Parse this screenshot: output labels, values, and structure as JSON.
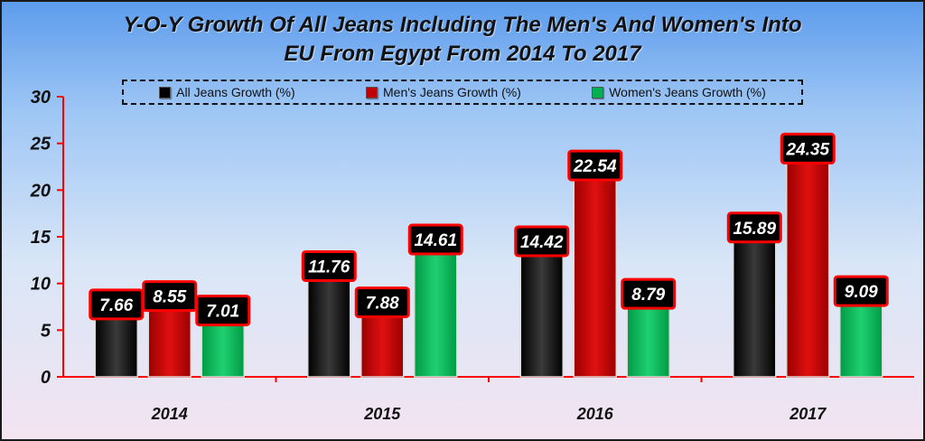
{
  "chart_data": {
    "type": "bar",
    "title_lines": [
      "Y-O-Y Growth Of All Jeans Including The Men's And Women's Into",
      "EU From Egypt From 2014 To 2017"
    ],
    "categories": [
      "2014",
      "2015",
      "2016",
      "2017"
    ],
    "series": [
      {
        "name": "All Jeans Growth (%)",
        "values": [
          7.66,
          11.76,
          14.42,
          15.89
        ],
        "color": "#000000",
        "labels": [
          "7.66",
          "11.76",
          "14.42",
          "15.89"
        ]
      },
      {
        "name": "Men's Jeans Growth (%)",
        "values": [
          8.55,
          7.88,
          22.54,
          24.35
        ],
        "color": "#c00000",
        "labels": [
          "8.55",
          "7.88",
          "22.54",
          "24.35"
        ]
      },
      {
        "name": "Women's Jeans  Growth (%)",
        "values": [
          7.01,
          14.61,
          8.79,
          9.09
        ],
        "color": "#00b050",
        "labels": [
          "7.01",
          "14.61",
          "8.79",
          "9.09"
        ]
      }
    ],
    "ylim": [
      0,
      30
    ],
    "yticks": [
      "0",
      "5",
      "10",
      "15",
      "20",
      "25",
      "30"
    ],
    "legend_position": "top",
    "grid": false,
    "axis_color": "#ff0000",
    "label_box_color": "#000000",
    "label_border_color": "#ff0000"
  }
}
